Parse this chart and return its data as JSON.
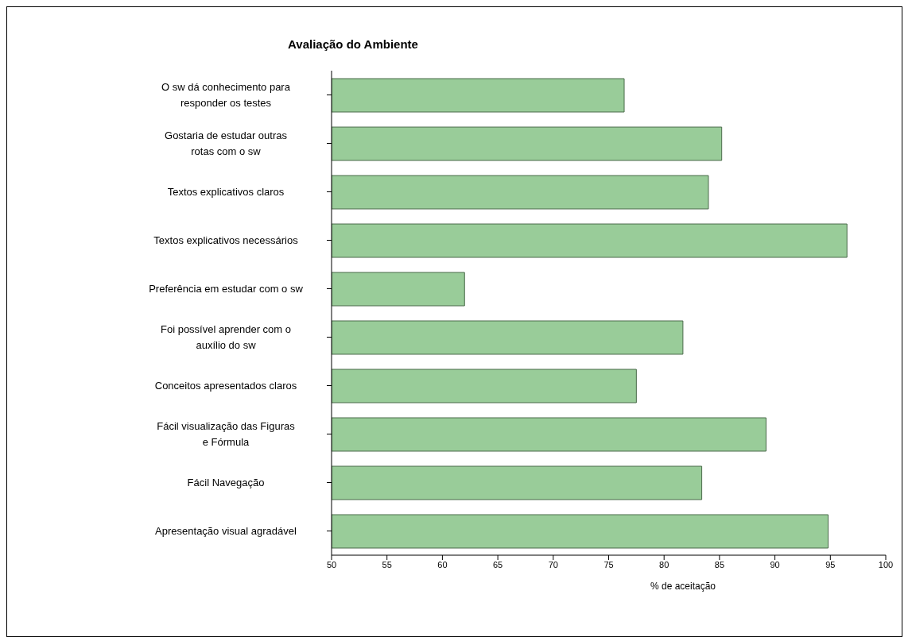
{
  "chart_data": {
    "type": "bar",
    "orientation": "horizontal",
    "title": "Avaliação do Ambiente",
    "xlabel": "% de aceitação",
    "categories": [
      "O sw dá conhecimento para responder os testes",
      "Gostaria de estudar outras rotas com o sw",
      "Textos explicativos claros",
      "Textos explicativos necessários",
      "Preferência em estudar com o sw",
      "Foi possível aprender com o auxílio do sw",
      "Conceitos apresentados claros",
      "Fácil visualização das Figuras e Fórmula",
      "Fácil Navegação",
      "Apresentação visual agradável"
    ],
    "values": [
      76.4,
      85.2,
      84.0,
      96.5,
      62.0,
      81.7,
      77.5,
      89.2,
      83.4,
      94.8
    ],
    "color": "#99cc99",
    "xlim": [
      50,
      100
    ],
    "xticks": [
      50,
      55,
      60,
      65,
      70,
      75,
      80,
      85,
      90,
      95,
      100
    ]
  }
}
